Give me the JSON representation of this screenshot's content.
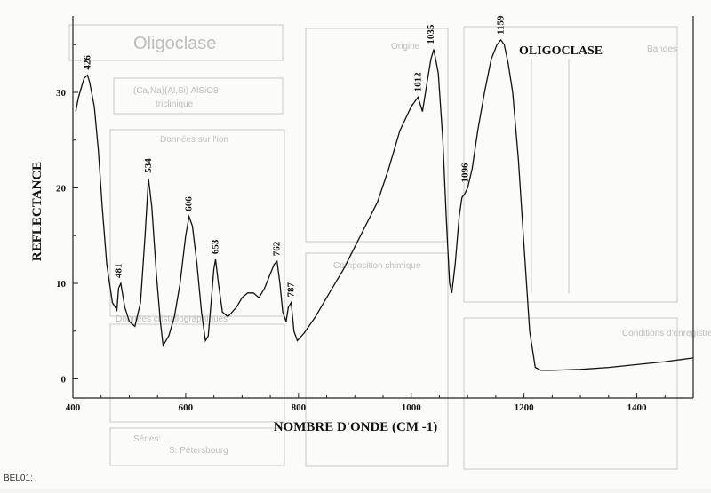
{
  "chart_data": {
    "type": "line",
    "title": "OLIGOCLASE",
    "xlabel": "NOMBRE D'ONDE (CM -1)",
    "ylabel": "REFLECTANCE",
    "xlim": [
      400,
      1500
    ],
    "ylim": [
      -2,
      38
    ],
    "x_ticks": [
      400,
      600,
      800,
      1000,
      1200,
      1400
    ],
    "y_ticks": [
      0,
      10,
      20,
      30
    ],
    "grid": false,
    "series": [
      {
        "x": [
          405,
          410,
          415,
          420,
          426,
          430,
          438,
          445,
          452,
          460,
          470,
          478,
          481,
          485,
          492,
          500,
          510,
          520,
          528,
          534,
          540,
          548,
          555,
          560,
          570,
          580,
          590,
          600,
          606,
          612,
          620,
          628,
          635,
          640,
          645,
          650,
          653,
          658,
          665,
          675,
          690,
          700,
          710,
          720,
          730,
          740,
          750,
          757,
          762,
          767,
          772,
          778,
          782,
          787,
          792,
          798,
          810,
          830,
          850,
          880,
          910,
          940,
          960,
          980,
          1000,
          1012,
          1020,
          1028,
          1035,
          1040,
          1048,
          1056,
          1062,
          1068,
          1072,
          1078,
          1085,
          1090,
          1094,
          1096,
          1100,
          1108,
          1118,
          1130,
          1142,
          1152,
          1159,
          1165,
          1172,
          1180,
          1190,
          1200,
          1210,
          1220,
          1230,
          1250,
          1300,
          1350,
          1400,
          1450,
          1500
        ],
        "y": [
          28,
          29.5,
          30.5,
          31.5,
          31.8,
          31,
          28.5,
          24,
          18,
          12,
          8,
          7.2,
          9.5,
          10,
          7.5,
          6,
          5.5,
          8,
          15,
          21,
          18,
          11,
          6,
          3.5,
          4.5,
          6.5,
          10,
          15,
          17,
          16,
          12,
          7,
          4,
          4.5,
          8,
          11.5,
          12.5,
          10,
          7,
          6.5,
          7.5,
          8.5,
          9,
          9,
          8.5,
          9.5,
          11,
          12,
          12.3,
          10,
          7,
          6,
          7.5,
          8,
          5,
          4,
          4.8,
          6.5,
          8.5,
          11.5,
          15,
          18.5,
          22,
          26,
          28.5,
          29.5,
          28,
          31,
          33.5,
          34.5,
          32,
          25,
          17,
          10,
          9,
          12,
          17,
          19,
          19.3,
          19.5,
          20,
          22,
          26,
          30,
          33.5,
          35,
          35.5,
          35,
          33,
          30,
          23,
          14,
          5,
          1.2,
          0.9,
          0.9,
          1,
          1.2,
          1.5,
          1.8,
          2.2
        ]
      }
    ],
    "annotations": [
      {
        "text": "426",
        "x": 426,
        "y": 31.8
      },
      {
        "text": "481",
        "x": 481,
        "y": 10
      },
      {
        "text": "534",
        "x": 534,
        "y": 21
      },
      {
        "text": "606",
        "x": 606,
        "y": 17
      },
      {
        "text": "653",
        "x": 653,
        "y": 12.5
      },
      {
        "text": "762",
        "x": 762,
        "y": 12.3
      },
      {
        "text": "787",
        "x": 787,
        "y": 8
      },
      {
        "text": "1012",
        "x": 1012,
        "y": 29.5
      },
      {
        "text": "1035",
        "x": 1035,
        "y": 34.5
      },
      {
        "text": "1096",
        "x": 1096,
        "y": 20
      },
      {
        "text": "1159",
        "x": 1159,
        "y": 35.5
      }
    ]
  },
  "background_form": {
    "sheet_title": "Oligoclase",
    "formula": "(Ca,Na)(Al,Si) AlSiO8",
    "formula_sub": "triclinique",
    "section_titles": [
      "Origine",
      "Bandes",
      "Données sur l'ion",
      "Composition chimique",
      "Données cristallographiques",
      "Conditions d'enregistrement"
    ],
    "footer_left": "Séries: ...",
    "footer_note": "S. Pétersbourg"
  },
  "footer_label": "BEL01;"
}
